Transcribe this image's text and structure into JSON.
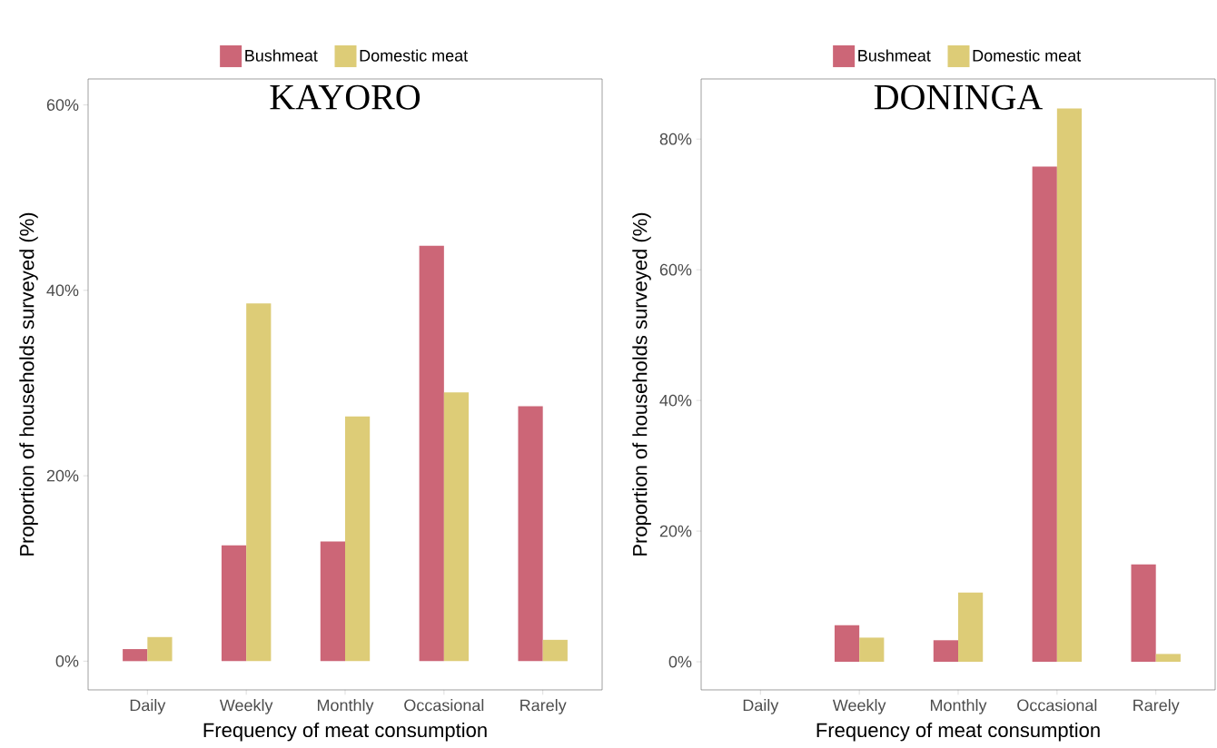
{
  "chart_data": [
    {
      "type": "bar",
      "title": "KAYORO",
      "categories": [
        "Daily",
        "Weekly",
        "Monthly",
        "Occasional",
        "Rarely"
      ],
      "xlabel": "Frequency of meat consumption",
      "ylabel": "Proportion of households surveyed (%)",
      "series": [
        {
          "name": "Bushmeat",
          "color": "#cc6677",
          "values": [
            1.3,
            12.5,
            12.9,
            44.8,
            27.5
          ]
        },
        {
          "name": "Domestic meat",
          "color": "#ddcc77",
          "values": [
            2.6,
            38.6,
            26.4,
            29.0,
            2.3
          ]
        }
      ],
      "ylim": [
        -3.1,
        62.8
      ],
      "yticks": [
        {
          "value": 0,
          "label": "0%"
        },
        {
          "value": 20,
          "label": "20%"
        },
        {
          "value": 40,
          "label": "40%"
        },
        {
          "value": 60,
          "label": "60%"
        }
      ],
      "legend": "top",
      "grid": false
    },
    {
      "type": "bar",
      "title": "DONINGA",
      "categories": [
        "Daily",
        "Weekly",
        "Monthly",
        "Occasional",
        "Rarely"
      ],
      "xlabel": "Frequency of meat consumption",
      "ylabel": "Proportion of households surveyed (%)",
      "series": [
        {
          "name": "Bushmeat",
          "color": "#cc6677",
          "values": [
            0,
            5.6,
            3.3,
            75.8,
            14.9
          ]
        },
        {
          "name": "Domestic meat",
          "color": "#ddcc77",
          "values": [
            0,
            3.7,
            10.6,
            84.7,
            1.2
          ]
        }
      ],
      "ylim": [
        -4.3,
        89.2
      ],
      "yticks": [
        {
          "value": 0,
          "label": "0%"
        },
        {
          "value": 20,
          "label": "20%"
        },
        {
          "value": 40,
          "label": "40%"
        },
        {
          "value": 60,
          "label": "60%"
        },
        {
          "value": 80,
          "label": "80%"
        }
      ],
      "legend": "top",
      "grid": false
    }
  ]
}
